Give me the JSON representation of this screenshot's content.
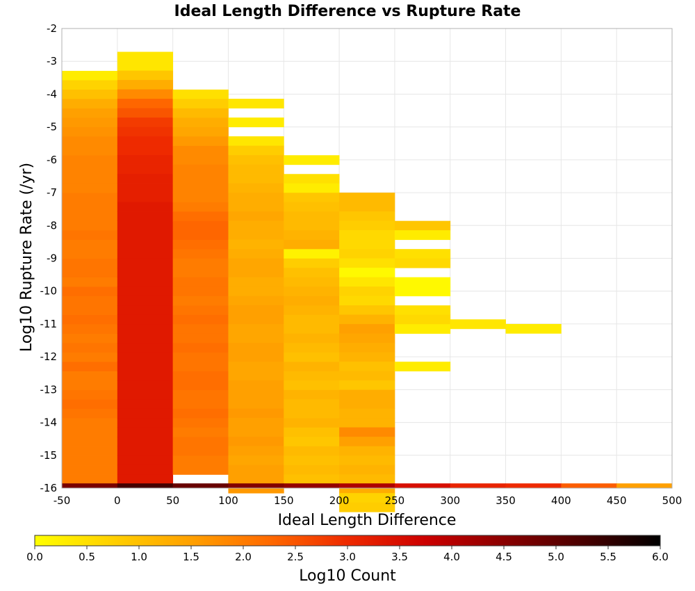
{
  "chart_data": {
    "type": "heatmap",
    "title": "Ideal Length Difference vs Rupture Rate",
    "xlabel": "Ideal Length Difference",
    "ylabel": "Log10 Rupture Rate (/yr)",
    "xlim": [
      -50,
      500
    ],
    "ylim": [
      -16,
      -2
    ],
    "x_ticks": [
      "-50",
      "0",
      "50",
      "100",
      "150",
      "200",
      "250",
      "300",
      "350",
      "400",
      "450",
      "500"
    ],
    "y_ticks": [
      "-2",
      "-3",
      "-4",
      "-5",
      "-6",
      "-7",
      "-8",
      "-9",
      "-10",
      "-11",
      "-12",
      "-13",
      "-14",
      "-15",
      "-16"
    ],
    "grid": true,
    "colorbar": {
      "label": "Log10 Count",
      "range": [
        0,
        6
      ],
      "ticks": [
        "0.0",
        "0.5",
        "1.0",
        "1.5",
        "2.0",
        "2.5",
        "3.0",
        "3.5",
        "4.0",
        "4.5",
        "5.0",
        "5.5",
        "6.0"
      ],
      "colors": [
        "#ffff00",
        "#ffd000",
        "#ffa000",
        "#ff6a00",
        "#ee2a00",
        "#cc0000",
        "#8a0000",
        "#4a0000",
        "#000000"
      ]
    },
    "bin_width_x": 50,
    "bin_height_y": 0.286,
    "columns": [
      {
        "x_start": -50,
        "y_top": -3.29,
        "values": [
          0.3,
          0.7,
          1.0,
          1.3,
          1.5,
          1.6,
          1.7,
          1.8,
          1.8,
          1.9,
          1.9,
          1.9,
          1.9,
          2.0,
          2.0,
          2.0,
          2.0,
          2.1,
          2.0,
          2.0,
          2.1,
          2.1,
          2.0,
          2.2,
          2.1,
          2.1,
          2.2,
          2.1,
          2.0,
          2.1,
          2.0,
          2.2,
          2.0,
          2.0,
          2.1,
          2.2,
          2.1,
          2.0,
          2.0,
          2.0,
          2.0,
          2.0,
          2.0,
          2.0
        ]
      },
      {
        "x_start": 0,
        "y_top": -2.71,
        "values": [
          0.4,
          0.4,
          0.9,
          1.3,
          1.8,
          2.3,
          2.5,
          2.8,
          2.9,
          3.0,
          3.0,
          3.1,
          3.1,
          3.2,
          3.2,
          3.2,
          3.3,
          3.3,
          3.3,
          3.3,
          3.3,
          3.3,
          3.3,
          3.3,
          3.3,
          3.3,
          3.3,
          3.3,
          3.3,
          3.3,
          3.3,
          3.3,
          3.3,
          3.3,
          3.3,
          3.3,
          3.3,
          3.3,
          3.3,
          3.3,
          3.3,
          3.3,
          3.3,
          3.3,
          3.3,
          3.3
        ]
      },
      {
        "x_start": 50,
        "y_top": -3.86,
        "values": [
          0.5,
          0.8,
          1.1,
          1.3,
          1.4,
          1.6,
          1.8,
          1.8,
          1.9,
          1.9,
          1.9,
          1.9,
          2.0,
          2.2,
          2.3,
          2.3,
          2.2,
          2.1,
          2.0,
          2.0,
          2.1,
          2.1,
          2.0,
          2.1,
          2.2,
          2.1,
          2.1,
          2.2,
          2.1,
          2.1,
          2.2,
          2.2,
          2.1,
          2.1,
          2.2,
          2.1,
          2.0,
          2.1,
          2.1,
          2.0,
          2.0
        ]
      },
      {
        "x_start": 100,
        "y_top": -4.14,
        "values": [
          0.4,
          null,
          0.3,
          null,
          0.4,
          0.8,
          1.0,
          1.1,
          1.1,
          1.2,
          1.3,
          1.3,
          1.4,
          1.3,
          1.3,
          1.2,
          1.3,
          1.4,
          1.4,
          1.3,
          1.3,
          1.4,
          1.5,
          1.5,
          1.4,
          1.4,
          1.5,
          1.5,
          1.4,
          1.4,
          1.5,
          1.5,
          1.5,
          1.6,
          1.5,
          1.5,
          1.6,
          1.5,
          1.4,
          1.5,
          1.5,
          1.6
        ]
      },
      {
        "x_start": 150,
        "y_top": -5.86,
        "values": [
          0.3,
          null,
          0.5,
          0.3,
          0.9,
          1.0,
          1.1,
          1.1,
          1.2,
          1.3,
          0.2,
          0.8,
          1.0,
          1.1,
          1.2,
          1.3,
          1.2,
          1.1,
          1.1,
          1.2,
          1.1,
          1.0,
          1.2,
          1.1,
          1.0,
          1.2,
          1.1,
          1.1,
          1.2,
          1.0,
          0.9,
          1.1,
          1.0,
          1.1,
          1.0
        ]
      },
      {
        "x_start": 200,
        "y_top": -7.0,
        "values": [
          1.1,
          1.1,
          0.9,
          0.8,
          0.6,
          0.6,
          0.7,
          0.5,
          0.1,
          0.4,
          0.7,
          0.6,
          0.9,
          1.2,
          1.5,
          1.4,
          1.3,
          1.2,
          1.0,
          1.1,
          0.9,
          1.3,
          1.3,
          1.2,
          1.2,
          1.8,
          1.5,
          1.2,
          1.1,
          1.2,
          1.1,
          1.3,
          0.7,
          0.8
        ]
      },
      {
        "x_start": 250,
        "y_top": -7.86,
        "values": [
          0.9,
          0.3,
          null,
          0.5,
          0.6,
          null,
          0.1,
          0.1,
          null,
          0.5,
          0.6,
          0.3,
          null,
          null,
          null,
          0.3
        ]
      },
      {
        "x_start": 300,
        "y_top": -10.86,
        "values": [
          0.4
        ]
      },
      {
        "x_start": 350,
        "y_top": -11.0,
        "values": [
          0.3
        ]
      },
      {
        "x_start": -50,
        "y_top": -15.857,
        "values": [
          4.7
        ],
        "full_width": true,
        "single": true
      },
      {
        "x_start": 0,
        "y_top": -15.857,
        "values": [
          5.3
        ],
        "single": true
      },
      {
        "x_start": 50,
        "y_top": -15.857,
        "values": [
          4.9
        ],
        "single": true
      },
      {
        "x_start": 100,
        "y_top": -15.857,
        "values": [
          4.6
        ],
        "single": true
      },
      {
        "x_start": 150,
        "y_top": -15.857,
        "values": [
          4.4
        ],
        "single": true
      },
      {
        "x_start": 200,
        "y_top": -15.857,
        "values": [
          4.1
        ],
        "single": true
      },
      {
        "x_start": 250,
        "y_top": -15.857,
        "values": [
          3.5
        ],
        "single": true
      },
      {
        "x_start": 300,
        "y_top": -15.857,
        "values": [
          3.1
        ],
        "single": true
      },
      {
        "x_start": 350,
        "y_top": -15.857,
        "values": [
          3.0
        ],
        "single": true
      },
      {
        "x_start": 400,
        "y_top": -15.857,
        "values": [
          2.4
        ],
        "single": true
      },
      {
        "x_start": 450,
        "y_top": -15.857,
        "values": [
          1.5
        ],
        "single": true
      }
    ]
  }
}
